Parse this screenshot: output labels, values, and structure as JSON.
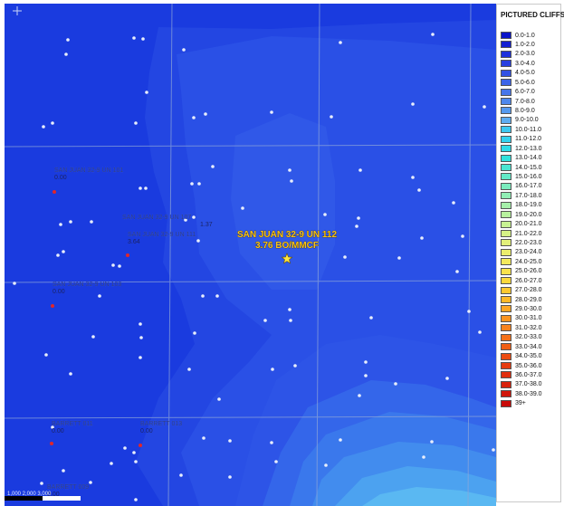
{
  "legend": {
    "title": "PICTURED CLIFFS",
    "items": [
      {
        "label": "0.0-1.0",
        "color": "#0a14c8"
      },
      {
        "label": "1.0-2.0",
        "color": "#1420d2"
      },
      {
        "label": "2.0-3.0",
        "color": "#1e30dc"
      },
      {
        "label": "3.0-4.0",
        "color": "#2840e0"
      },
      {
        "label": "4.0-5.0",
        "color": "#3252e4"
      },
      {
        "label": "5.0-6.0",
        "color": "#3c64e8"
      },
      {
        "label": "6.0-7.0",
        "color": "#4676ea"
      },
      {
        "label": "7.0-8.0",
        "color": "#4e88ec"
      },
      {
        "label": "8.0-9.0",
        "color": "#569aee"
      },
      {
        "label": "9.0-10.0",
        "color": "#5eacf0"
      },
      {
        "label": "10.0-11.0",
        "color": "#3cc8f0"
      },
      {
        "label": "11.0-12.0",
        "color": "#32d2ee"
      },
      {
        "label": "12.0-13.0",
        "color": "#2edce8"
      },
      {
        "label": "13.0-14.0",
        "color": "#30e2dc"
      },
      {
        "label": "14.0-15.0",
        "color": "#4ae6d2"
      },
      {
        "label": "15.0-16.0",
        "color": "#62eac8"
      },
      {
        "label": "16.0-17.0",
        "color": "#7aecbe"
      },
      {
        "label": "17.0-18.0",
        "color": "#90eeb4"
      },
      {
        "label": "18.0-19.0",
        "color": "#a6f0aa"
      },
      {
        "label": "19.0-20.0",
        "color": "#b8f29e"
      },
      {
        "label": "20.0-21.0",
        "color": "#c8f292"
      },
      {
        "label": "21.0-22.0",
        "color": "#d6f286"
      },
      {
        "label": "22.0-23.0",
        "color": "#e2f07a"
      },
      {
        "label": "23.0-24.0",
        "color": "#ecee6c"
      },
      {
        "label": "24.0-25.0",
        "color": "#f4ea5c"
      },
      {
        "label": "25.0-26.0",
        "color": "#f8e24c"
      },
      {
        "label": "26.0-27.0",
        "color": "#fad83c"
      },
      {
        "label": "27.0-28.0",
        "color": "#fcc830"
      },
      {
        "label": "28.0-29.0",
        "color": "#fcb828"
      },
      {
        "label": "29.0-30.0",
        "color": "#fca624"
      },
      {
        "label": "30.0-31.0",
        "color": "#fa9420"
      },
      {
        "label": "31.0-32.0",
        "color": "#f8821c"
      },
      {
        "label": "32.0-33.0",
        "color": "#f47018"
      },
      {
        "label": "33.0-34.0",
        "color": "#f05e14"
      },
      {
        "label": "34.0-35.0",
        "color": "#ec4c12"
      },
      {
        "label": "35.0-36.0",
        "color": "#e63c10"
      },
      {
        "label": "36.0-37.0",
        "color": "#e02e0e"
      },
      {
        "label": "37.0-38.0",
        "color": "#d8220c"
      },
      {
        "label": "38.0-39.0",
        "color": "#d0160a"
      },
      {
        "label": "39+",
        "color": "#c80a08"
      }
    ]
  },
  "highlight": {
    "name": "SAN JUAN 32-9 UN 112",
    "value": "3.76 BO/MMCF"
  },
  "wells": [
    {
      "name": "SAN JUAN 32-9 UN 101",
      "value": "0.00"
    },
    {
      "name": "SAN JUAN 32-9 UN 107",
      "value": "1.37"
    },
    {
      "name": "SAN JUAN 32-9 UN 111",
      "value": "3.64"
    },
    {
      "name": "SAN JUAN 32-9 UN 103",
      "value": "0.00"
    },
    {
      "name": "BARRETT 011",
      "value": "0.00"
    },
    {
      "name": "BARRETT 013",
      "value": "0.00"
    },
    {
      "name": "BARRETT 009",
      "value": "0.00"
    }
  ],
  "scale_bar": {
    "label": "1,000 2,000 3,000"
  }
}
